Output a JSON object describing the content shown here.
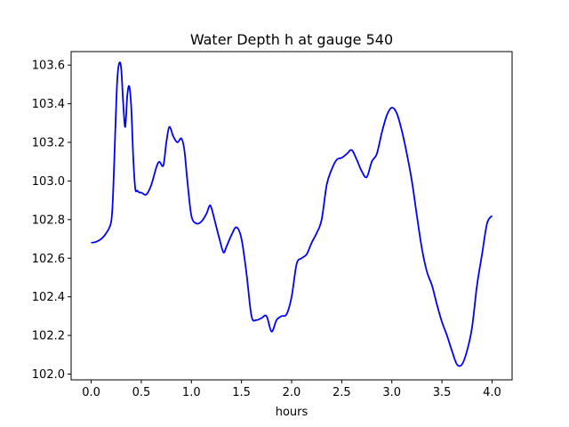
{
  "chart_data": {
    "type": "line",
    "title": "Water Depth h at gauge 540",
    "xlabel": "hours",
    "ylabel": "",
    "xlim": [
      -0.2,
      4.2
    ],
    "ylim": [
      101.97,
      103.67
    ],
    "xticks": [
      0.0,
      0.5,
      1.0,
      1.5,
      2.0,
      2.5,
      3.0,
      3.5,
      4.0
    ],
    "xtick_labels": [
      "0.0",
      "0.5",
      "1.0",
      "1.5",
      "2.0",
      "2.5",
      "3.0",
      "3.5",
      "4.0"
    ],
    "yticks": [
      102.0,
      102.2,
      102.4,
      102.6,
      102.8,
      103.0,
      103.2,
      103.4,
      103.6
    ],
    "ytick_labels": [
      "102.0",
      "102.2",
      "102.4",
      "102.6",
      "102.8",
      "103.0",
      "103.2",
      "103.4",
      "103.6"
    ],
    "grid": false,
    "series": [
      {
        "color": "#0000ff",
        "x": [
          0.0,
          0.05,
          0.1,
          0.15,
          0.2,
          0.22,
          0.24,
          0.26,
          0.28,
          0.3,
          0.32,
          0.34,
          0.36,
          0.38,
          0.4,
          0.42,
          0.44,
          0.46,
          0.48,
          0.5,
          0.55,
          0.6,
          0.65,
          0.68,
          0.72,
          0.75,
          0.78,
          0.82,
          0.86,
          0.9,
          0.93,
          0.96,
          1.0,
          1.05,
          1.1,
          1.15,
          1.18,
          1.2,
          1.25,
          1.28,
          1.32,
          1.35,
          1.4,
          1.45,
          1.5,
          1.55,
          1.6,
          1.65,
          1.7,
          1.75,
          1.8,
          1.85,
          1.9,
          1.95,
          2.0,
          2.05,
          2.1,
          2.15,
          2.2,
          2.25,
          2.3,
          2.35,
          2.4,
          2.45,
          2.5,
          2.55,
          2.6,
          2.65,
          2.7,
          2.75,
          2.8,
          2.85,
          2.9,
          2.95,
          3.0,
          3.05,
          3.1,
          3.15,
          3.2,
          3.25,
          3.3,
          3.35,
          3.4,
          3.45,
          3.5,
          3.55,
          3.6,
          3.65,
          3.7,
          3.75,
          3.8,
          3.85,
          3.9,
          3.95,
          4.0
        ],
        "y": [
          102.68,
          102.685,
          102.7,
          102.73,
          102.79,
          102.95,
          103.25,
          103.52,
          103.61,
          103.58,
          103.4,
          103.28,
          103.44,
          103.49,
          103.38,
          103.12,
          102.96,
          102.95,
          102.94,
          102.94,
          102.93,
          102.98,
          103.07,
          103.1,
          103.08,
          103.2,
          103.28,
          103.23,
          103.2,
          103.22,
          103.16,
          103.0,
          102.82,
          102.78,
          102.79,
          102.83,
          102.87,
          102.86,
          102.76,
          102.7,
          102.63,
          102.66,
          102.72,
          102.76,
          102.7,
          102.52,
          102.3,
          102.28,
          102.29,
          102.3,
          102.22,
          102.28,
          102.3,
          102.31,
          102.4,
          102.57,
          102.6,
          102.62,
          102.68,
          102.73,
          102.8,
          102.98,
          103.06,
          103.11,
          103.12,
          103.14,
          103.16,
          103.11,
          103.05,
          103.02,
          103.1,
          103.14,
          103.25,
          103.34,
          103.38,
          103.35,
          103.26,
          103.14,
          103.0,
          102.82,
          102.65,
          102.53,
          102.46,
          102.36,
          102.27,
          102.2,
          102.12,
          102.05,
          102.05,
          102.12,
          102.24,
          102.46,
          102.62,
          102.78,
          102.82
        ]
      }
    ]
  }
}
